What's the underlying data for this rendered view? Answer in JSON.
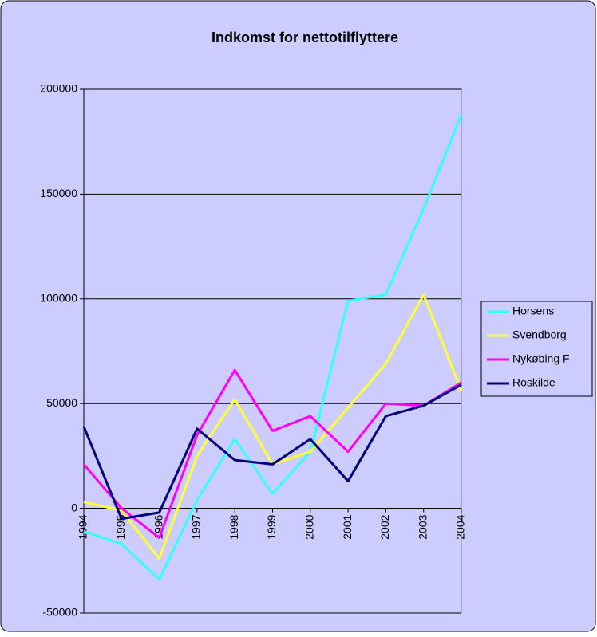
{
  "chart_data": {
    "type": "line",
    "title": "Indkomst for nettotilflyttere",
    "categories": [
      "1994",
      "1995",
      "1996",
      "1997",
      "1998",
      "1999",
      "2000",
      "2001",
      "2002",
      "2003",
      "2004"
    ],
    "series": [
      {
        "name": "Horsens",
        "color": "#33ffff",
        "values": [
          -11000,
          -17000,
          -34000,
          4000,
          33000,
          7000,
          27000,
          99000,
          102000,
          143000,
          188000
        ]
      },
      {
        "name": "Svendborg",
        "color": "#ffff33",
        "values": [
          3000,
          -1000,
          -24000,
          25000,
          52000,
          21000,
          27000,
          48000,
          69000,
          102000,
          56000
        ]
      },
      {
        "name": "Nykøbing F",
        "color": "#ff00ff",
        "values": [
          21000,
          0,
          -14000,
          35000,
          66000,
          37000,
          44000,
          27000,
          50000,
          49000,
          60000
        ]
      },
      {
        "name": "Roskilde",
        "color": "#000080",
        "values": [
          39000,
          -5000,
          -2000,
          38000,
          23000,
          21000,
          33000,
          13000,
          44000,
          49000,
          59000
        ]
      }
    ],
    "ylim": [
      -50000,
      200000
    ],
    "yticks": [
      -50000,
      0,
      50000,
      100000,
      150000,
      200000
    ],
    "grid": true,
    "legend": "right"
  }
}
